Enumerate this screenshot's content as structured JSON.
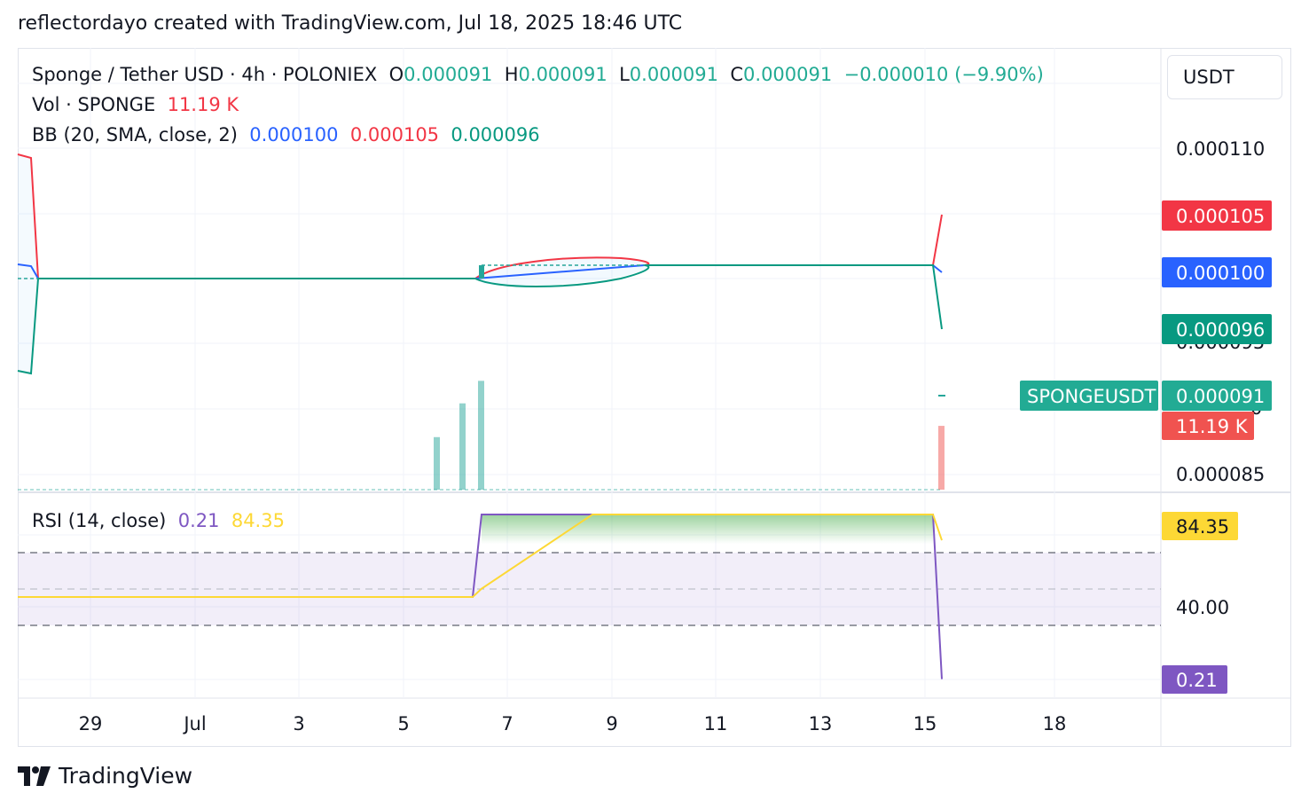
{
  "header": {
    "attribution": "reflectordayo created with TradingView.com, Jul 18, 2025 18:46 UTC"
  },
  "legend": {
    "symbol": "Sponge / Tether USD · 4h · POLONIEX",
    "o_label": "O",
    "o_value": "0.000091",
    "h_label": "H",
    "h_value": "0.000091",
    "l_label": "L",
    "l_value": "0.000091",
    "c_label": "C",
    "c_value": "0.000091",
    "change": "−0.000010 (−9.90%)",
    "vol_label": "Vol · SPONGE",
    "vol_value": "11.19 K",
    "bb_label": "BB (20, SMA, close, 2)",
    "bb_basis": "0.000100",
    "bb_upper": "0.000105",
    "bb_lower": "0.000096",
    "rsi_label": "RSI (14, close)",
    "rsi_value": "0.21",
    "rsi_ma": "84.35"
  },
  "price_scale": {
    "unit": "USDT",
    "ticks": [
      "0.000110",
      "0.000095",
      "0",
      "0.000085"
    ],
    "rsi_ticks": [
      "40.00"
    ],
    "badges": {
      "bb_upper": "0.000105",
      "bb_basis": "0.000100",
      "bb_lower": "0.000096",
      "symbol": "SPONGEUSDT",
      "last_price": "0.000091",
      "volume": "11.19 K",
      "rsi_ma": "84.35",
      "rsi": "0.21"
    }
  },
  "time_axis": {
    "labels": [
      "29",
      "Jul",
      "3",
      "5",
      "7",
      "9",
      "11",
      "13",
      "15",
      "18"
    ]
  },
  "footer": {
    "brand": "TradingView"
  },
  "colors": {
    "up": "#26a69a",
    "down": "#ef5350",
    "bb_basis": "#2962ff",
    "bb_upper": "#f23645",
    "bb_lower": "#089981",
    "rsi": "#7e57c2",
    "rsi_ma": "#fdd835",
    "grid": "#f0f3fa",
    "text": "#131722",
    "last_price": "#22ab94",
    "vol_badge": "#f05350"
  },
  "chart_data": {
    "type": "candlestick",
    "title": "Sponge / Tether USD · 4h · POLONIEX",
    "timeframe": "4h",
    "x_labels": [
      "29",
      "Jul",
      "3",
      "5",
      "7",
      "9",
      "11",
      "13",
      "15",
      "18"
    ],
    "price_range": [
      8.2e-05,
      0.000113
    ],
    "ohlc_last": {
      "open": 9.1e-05,
      "high": 9.1e-05,
      "low": 9.1e-05,
      "close": 9.1e-05
    },
    "bollinger": [
      {
        "date": "Jun 28",
        "basis": 0.0001015,
        "upper": 0.0001095,
        "lower": 9.35e-05
      },
      {
        "date": "Jun 29",
        "basis": 0.0001,
        "upper": 0.0001,
        "lower": 0.0001
      },
      {
        "date": "Jul 6",
        "basis": 0.0001,
        "upper": 0.0001,
        "lower": 0.0001
      },
      {
        "date": "Jul 7",
        "basis": 0.0001006,
        "upper": 0.0001012,
        "lower": 9.94e-05
      },
      {
        "date": "Jul 8",
        "basis": 0.0001009,
        "upper": 0.0001017,
        "lower": 9.93e-05
      },
      {
        "date": "Jul 10",
        "basis": 0.000101,
        "upper": 0.000101,
        "lower": 0.000101
      },
      {
        "date": "Jul 15",
        "basis": 0.000101,
        "upper": 0.000101,
        "lower": 0.000101
      },
      {
        "date": "Jul 15 late",
        "basis": 0.0001,
        "upper": 0.000105,
        "lower": 9.6e-05
      }
    ],
    "volume_bars": [
      {
        "date": "Jul 5",
        "value": 4.2,
        "color": "up"
      },
      {
        "date": "Jul 6",
        "value": 6.9,
        "color": "up"
      },
      {
        "date": "Jul 6 late",
        "value": 8.7,
        "color": "up"
      },
      {
        "date": "Jul 15",
        "value": 5.1,
        "color": "down"
      }
    ],
    "rsi": {
      "range": [
        0,
        100
      ],
      "band": [
        30,
        70
      ],
      "points": [
        {
          "date": "Jun 28",
          "rsi": 50,
          "ma": 50
        },
        {
          "date": "Jul 6",
          "rsi": 50,
          "ma": 50
        },
        {
          "date": "Jul 6 late",
          "rsi": 100,
          "ma": 55
        },
        {
          "date": "Jul 9",
          "rsi": 100,
          "ma": 100
        },
        {
          "date": "Jul 15",
          "rsi": 100,
          "ma": 100
        },
        {
          "date": "Jul 15 late",
          "rsi": 0.21,
          "ma": 84.35
        }
      ]
    }
  }
}
